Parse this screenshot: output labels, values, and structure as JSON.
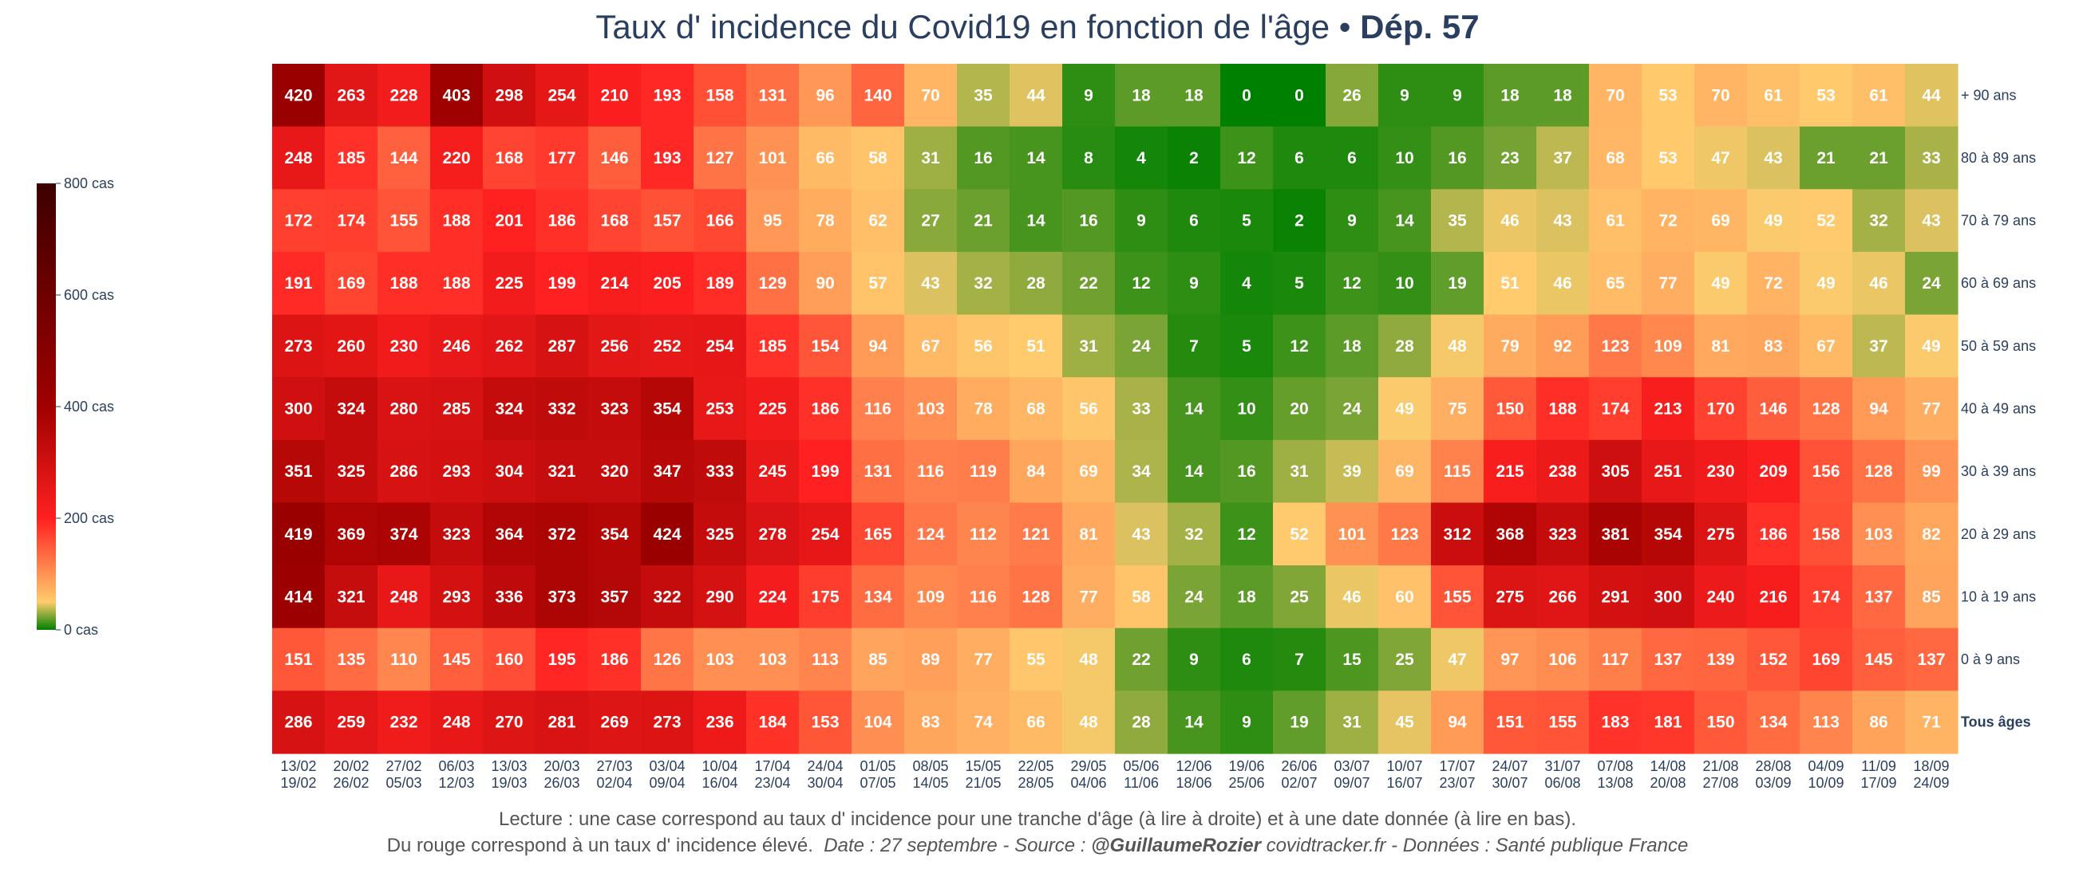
{
  "title": {
    "main": "Taux d' incidence du Covid19 en fonction de l'âge",
    "separator": " • ",
    "dept": "Dép. 57"
  },
  "colors": {
    "scale": [
      "#008000",
      "#ffcc6e",
      "#ff2020",
      "#a00000",
      "#3d0000"
    ],
    "scale_stops": [
      0,
      50,
      200,
      400,
      800
    ]
  },
  "colorbar": {
    "ticks": [
      {
        "value": 800,
        "label": "800 cas"
      },
      {
        "value": 600,
        "label": "600 cas"
      },
      {
        "value": 400,
        "label": "400 cas"
      },
      {
        "value": 200,
        "label": "200 cas"
      },
      {
        "value": 0,
        "label": "0 cas"
      }
    ]
  },
  "chart_data": {
    "type": "heatmap",
    "title": "Taux d' incidence du Covid19 en fonction de l'âge • Dép. 57",
    "zmin": 0,
    "zmax": 800,
    "x": [
      [
        "13/02",
        "19/02"
      ],
      [
        "20/02",
        "26/02"
      ],
      [
        "27/02",
        "05/03"
      ],
      [
        "06/03",
        "12/03"
      ],
      [
        "13/03",
        "19/03"
      ],
      [
        "20/03",
        "26/03"
      ],
      [
        "27/03",
        "02/04"
      ],
      [
        "03/04",
        "09/04"
      ],
      [
        "10/04",
        "16/04"
      ],
      [
        "17/04",
        "23/04"
      ],
      [
        "24/04",
        "30/04"
      ],
      [
        "01/05",
        "07/05"
      ],
      [
        "08/05",
        "14/05"
      ],
      [
        "15/05",
        "21/05"
      ],
      [
        "22/05",
        "28/05"
      ],
      [
        "29/05",
        "04/06"
      ],
      [
        "05/06",
        "11/06"
      ],
      [
        "12/06",
        "18/06"
      ],
      [
        "19/06",
        "25/06"
      ],
      [
        "26/06",
        "02/07"
      ],
      [
        "03/07",
        "09/07"
      ],
      [
        "10/07",
        "16/07"
      ],
      [
        "17/07",
        "23/07"
      ],
      [
        "24/07",
        "30/07"
      ],
      [
        "31/07",
        "06/08"
      ],
      [
        "07/08",
        "13/08"
      ],
      [
        "14/08",
        "20/08"
      ],
      [
        "21/08",
        "27/08"
      ],
      [
        "28/08",
        "03/09"
      ],
      [
        "04/09",
        "10/09"
      ],
      [
        "11/09",
        "17/09"
      ],
      [
        "18/09",
        "24/09"
      ]
    ],
    "y": [
      "+ 90 ans",
      "80 à 89 ans",
      "70 à 79 ans",
      "60 à 69 ans",
      "50 à 59 ans",
      "40 à 49 ans",
      "30 à 39 ans",
      "20 à 29 ans",
      "10 à 19 ans",
      "0 à 9 ans",
      "Tous âges"
    ],
    "y_bold": "Tous âges",
    "z": [
      [
        420,
        263,
        228,
        403,
        298,
        254,
        210,
        193,
        158,
        131,
        96,
        140,
        70,
        35,
        44,
        9,
        18,
        18,
        0,
        0,
        26,
        9,
        9,
        18,
        18,
        70,
        53,
        70,
        61,
        53,
        61,
        44
      ],
      [
        248,
        185,
        144,
        220,
        168,
        177,
        146,
        193,
        127,
        101,
        66,
        58,
        31,
        16,
        14,
        8,
        4,
        2,
        12,
        6,
        6,
        10,
        16,
        23,
        37,
        68,
        53,
        47,
        43,
        21,
        21,
        33
      ],
      [
        172,
        174,
        155,
        188,
        201,
        186,
        168,
        157,
        166,
        95,
        78,
        62,
        27,
        21,
        14,
        16,
        9,
        6,
        5,
        2,
        9,
        14,
        35,
        46,
        43,
        61,
        72,
        69,
        49,
        52,
        32,
        43
      ],
      [
        191,
        169,
        188,
        188,
        225,
        199,
        214,
        205,
        189,
        129,
        90,
        57,
        43,
        32,
        28,
        22,
        12,
        9,
        4,
        5,
        12,
        10,
        19,
        51,
        46,
        65,
        77,
        49,
        72,
        49,
        46,
        24
      ],
      [
        273,
        260,
        230,
        246,
        262,
        287,
        256,
        252,
        254,
        185,
        154,
        94,
        67,
        56,
        51,
        31,
        24,
        7,
        5,
        12,
        18,
        28,
        48,
        79,
        92,
        123,
        109,
        81,
        83,
        67,
        37,
        49
      ],
      [
        300,
        324,
        280,
        285,
        324,
        332,
        323,
        354,
        253,
        225,
        186,
        116,
        103,
        78,
        68,
        56,
        33,
        14,
        10,
        20,
        24,
        49,
        75,
        150,
        188,
        174,
        213,
        170,
        146,
        128,
        94,
        77
      ],
      [
        351,
        325,
        286,
        293,
        304,
        321,
        320,
        347,
        333,
        245,
        199,
        131,
        116,
        119,
        84,
        69,
        34,
        14,
        16,
        31,
        39,
        69,
        115,
        215,
        238,
        305,
        251,
        230,
        209,
        156,
        128,
        99
      ],
      [
        419,
        369,
        374,
        323,
        364,
        372,
        354,
        424,
        325,
        278,
        254,
        165,
        124,
        112,
        121,
        81,
        43,
        32,
        12,
        52,
        101,
        123,
        312,
        368,
        323,
        381,
        354,
        275,
        186,
        158,
        103,
        82
      ],
      [
        414,
        321,
        248,
        293,
        336,
        373,
        357,
        322,
        290,
        224,
        175,
        134,
        109,
        116,
        128,
        77,
        58,
        24,
        18,
        25,
        46,
        60,
        155,
        275,
        266,
        291,
        300,
        240,
        216,
        174,
        137,
        85
      ],
      [
        151,
        135,
        110,
        145,
        160,
        195,
        186,
        126,
        103,
        103,
        113,
        85,
        89,
        77,
        55,
        48,
        22,
        9,
        6,
        7,
        15,
        25,
        47,
        97,
        106,
        117,
        137,
        139,
        152,
        169,
        145,
        137
      ],
      [
        286,
        259,
        232,
        248,
        270,
        281,
        269,
        273,
        236,
        184,
        153,
        104,
        83,
        74,
        66,
        48,
        28,
        14,
        9,
        19,
        31,
        45,
        94,
        151,
        155,
        183,
        181,
        150,
        134,
        113,
        86,
        71
      ]
    ]
  },
  "footer": {
    "line1": "Lecture : une case correspond au taux d' incidence pour une tranche d'âge (à lire à droite) et à une date donnée (à lire en bas).",
    "line2_plain": "Du rouge correspond à un taux d' incidence élevé.",
    "line2_date_source": "Date : 27 septembre - Source : ",
    "line2_author": "@GuillaumeRozier",
    "line2_rest": " covidtracker.fr - Données : Santé publique France"
  }
}
